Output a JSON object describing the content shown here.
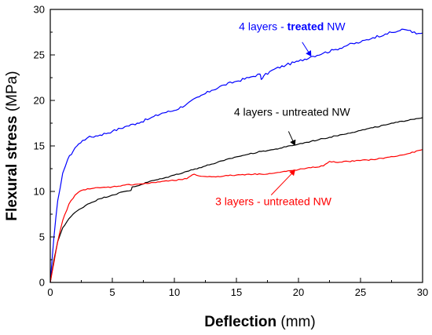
{
  "chart_data": {
    "type": "line",
    "xlabel": {
      "bold": "Deflection",
      "unit": " (mm)"
    },
    "ylabel": {
      "bold": "Flexural stress",
      "unit": " (MPa)"
    },
    "xlim": [
      0,
      30
    ],
    "ylim": [
      0,
      30
    ],
    "xticks": [
      0,
      5,
      10,
      15,
      20,
      25,
      30
    ],
    "yticks": [
      0,
      5,
      10,
      15,
      20,
      25,
      30
    ],
    "xtick_labels": [
      "0",
      "5",
      "10",
      "15",
      "20",
      "25",
      "30"
    ],
    "ytick_labels": [
      "0",
      "5",
      "10",
      "15",
      "20",
      "25",
      "30"
    ],
    "grid": false,
    "series": [
      {
        "name": "4 layers - treated NW",
        "color": "#0000ff",
        "x": [
          0,
          0.3,
          0.6,
          1.0,
          1.4,
          2.0,
          2.6,
          3.0,
          4.0,
          5.0,
          6.0,
          7.0,
          8.0,
          9.0,
          10.0,
          11.0,
          12.0,
          13.0,
          14.0,
          15.0,
          16.0,
          16.9,
          17.0,
          17.2,
          18.0,
          19.0,
          20.0,
          21.0,
          22.0,
          23.0,
          24.0,
          25.0,
          26.0,
          27.0,
          28.0,
          28.5,
          29.0,
          29.5,
          30.0
        ],
        "y": [
          0,
          5.0,
          9.0,
          12.0,
          13.5,
          14.8,
          15.6,
          15.9,
          16.2,
          16.6,
          17.1,
          17.5,
          18.0,
          18.6,
          18.9,
          19.6,
          20.4,
          21.1,
          21.7,
          22.1,
          22.5,
          22.9,
          22.3,
          22.7,
          23.4,
          23.9,
          24.3,
          24.8,
          25.2,
          25.6,
          26.1,
          26.4,
          26.9,
          27.3,
          27.6,
          27.8,
          27.7,
          27.3,
          27.4
        ]
      },
      {
        "name": "4 layers - untreated NW",
        "color": "#000000",
        "x": [
          0,
          0.3,
          0.6,
          1.0,
          1.5,
          2.0,
          3.0,
          4.0,
          5.0,
          6.0,
          6.5,
          6.6,
          7.0,
          8.0,
          9.0,
          10.0,
          11.0,
          12.0,
          13.0,
          14.0,
          15.0,
          16.0,
          17.0,
          18.0,
          19.0,
          20.0,
          21.0,
          22.0,
          23.0,
          24.0,
          25.0,
          26.0,
          27.0,
          28.0,
          29.0,
          30.0
        ],
        "y": [
          0,
          2.5,
          4.5,
          6.0,
          7.0,
          7.7,
          8.6,
          9.2,
          9.6,
          10.0,
          10.1,
          10.5,
          10.6,
          11.1,
          11.4,
          11.8,
          12.2,
          12.6,
          13.0,
          13.4,
          13.8,
          14.1,
          14.4,
          14.6,
          14.9,
          15.2,
          15.5,
          15.8,
          16.1,
          16.4,
          16.7,
          17.0,
          17.3,
          17.6,
          17.9,
          18.1
        ]
      },
      {
        "name": "3 layers - untreated NW",
        "color": "#ff0000",
        "x": [
          0,
          0.3,
          0.6,
          1.0,
          1.5,
          2.0,
          2.5,
          3.0,
          4.0,
          5.0,
          6.0,
          7.0,
          8.0,
          9.0,
          10.0,
          11.0,
          11.6,
          12.0,
          13.0,
          14.0,
          15.0,
          16.0,
          17.0,
          18.0,
          19.0,
          20.0,
          21.0,
          22.0,
          22.5,
          23.0,
          24.0,
          25.0,
          26.0,
          27.0,
          28.0,
          29.0,
          30.0
        ],
        "y": [
          0,
          2.2,
          4.5,
          6.8,
          8.6,
          9.6,
          10.1,
          10.3,
          10.4,
          10.5,
          10.7,
          10.8,
          10.9,
          11.1,
          11.2,
          11.4,
          11.9,
          11.7,
          11.6,
          11.7,
          11.8,
          11.9,
          11.9,
          12.0,
          12.2,
          12.4,
          12.6,
          12.8,
          13.3,
          13.2,
          13.3,
          13.4,
          13.5,
          13.7,
          13.9,
          14.2,
          14.6
        ]
      }
    ],
    "annotations": [
      {
        "parts": [
          {
            "text": "4 layers - ",
            "bold": false
          },
          {
            "text": "treated",
            "bold": true
          },
          {
            "text": " NW",
            "bold": false
          }
        ],
        "color": "#0000ff",
        "text_at": [
          15.2,
          27.7
        ],
        "arrow_from": [
          20.3,
          26.4
        ],
        "arrow_to": [
          21.0,
          24.9
        ]
      },
      {
        "parts": [
          {
            "text": "4 layers - untreated NW",
            "bold": false
          }
        ],
        "color": "#000000",
        "text_at": [
          14.8,
          18.3
        ],
        "arrow_from": [
          19.2,
          16.6
        ],
        "arrow_to": [
          19.7,
          15.1
        ]
      },
      {
        "parts": [
          {
            "text": "3 layers - untreated NW",
            "bold": false
          }
        ],
        "color": "#ff0000",
        "text_at": [
          13.3,
          8.5
        ],
        "arrow_from": [
          17.8,
          9.6
        ],
        "arrow_to": [
          19.7,
          12.3
        ]
      }
    ]
  }
}
